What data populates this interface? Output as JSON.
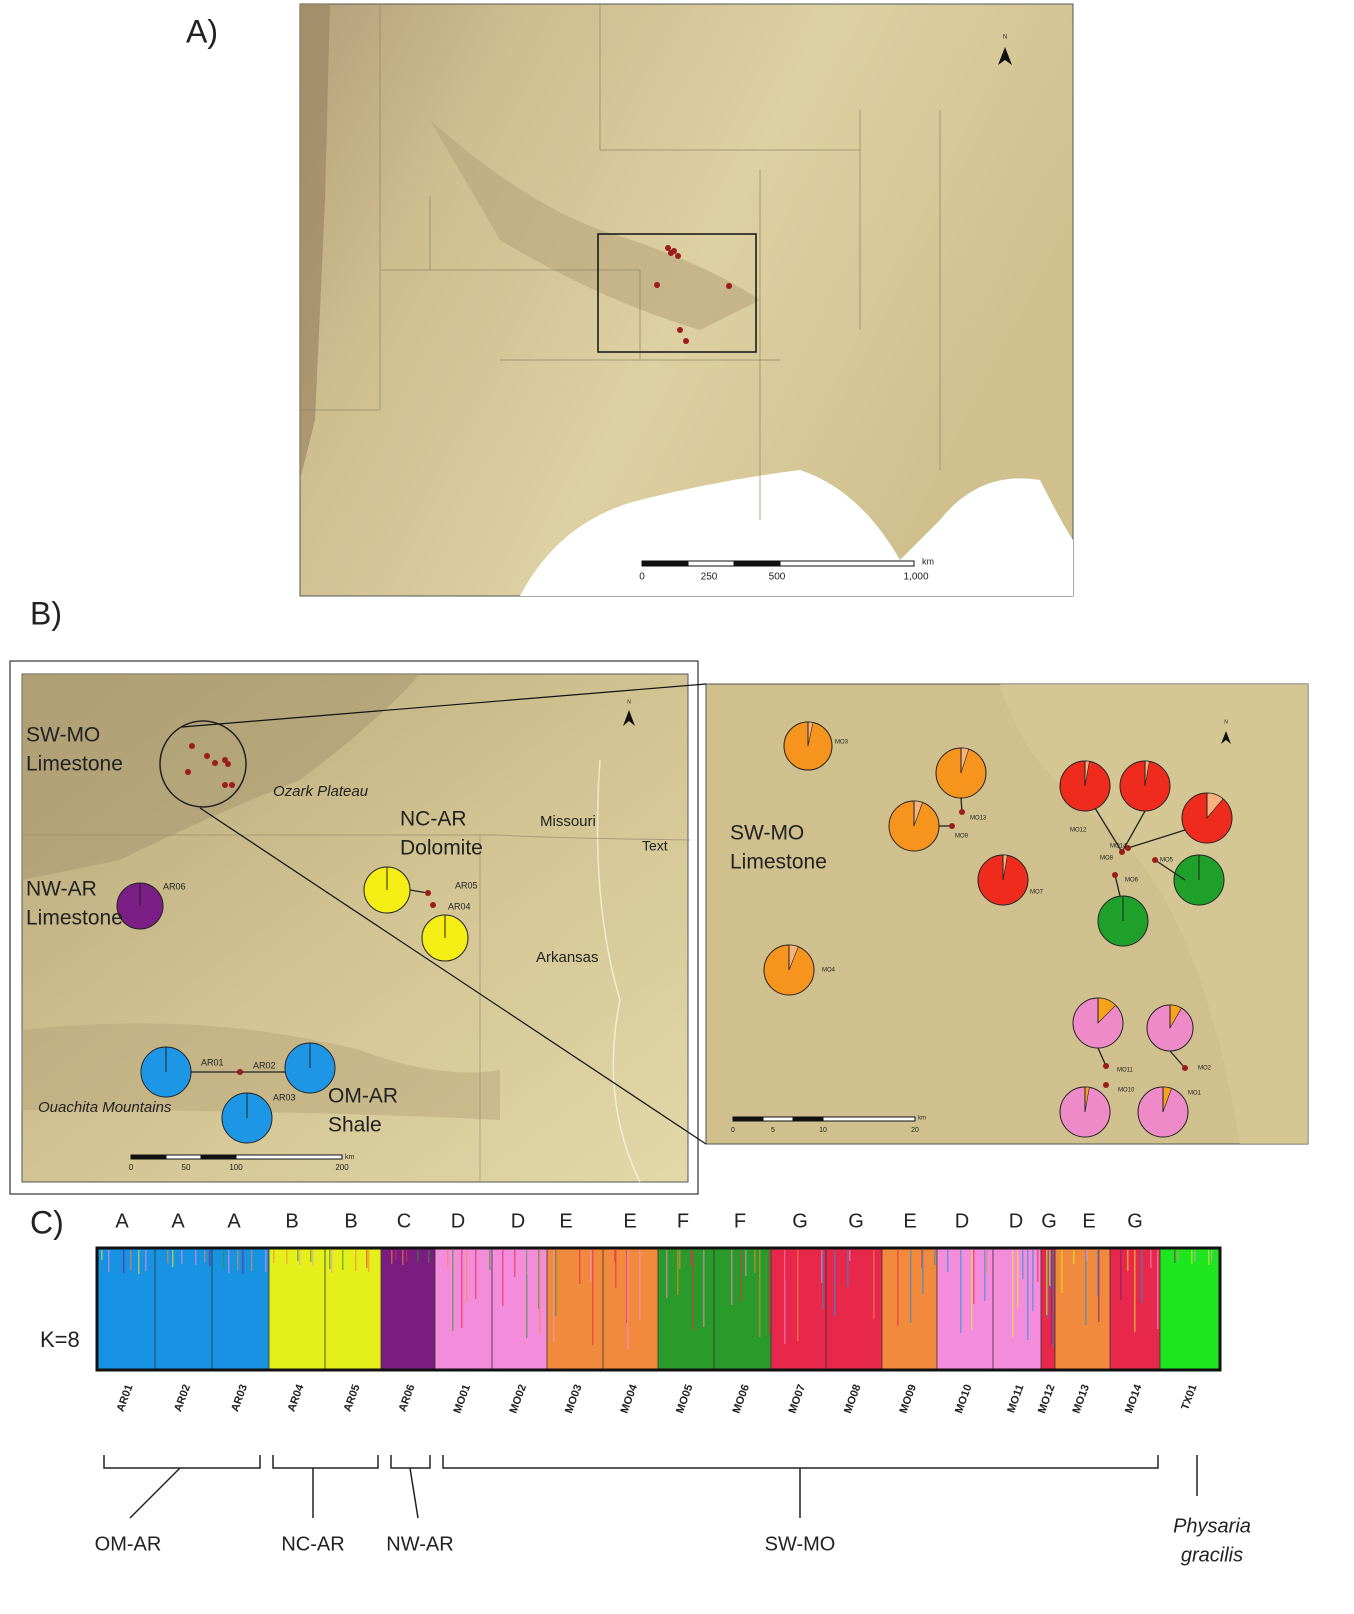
{
  "panel_a": {
    "label": "A)",
    "scale": {
      "ticks": [
        "0",
        "250",
        "500",
        "1,000"
      ],
      "unit": "km"
    },
    "north": "N"
  },
  "panel_b": {
    "label": "B)",
    "left_map": {
      "places": [
        [
          "SW-MO",
          "Limestone"
        ],
        [
          "NC-AR",
          "Dolomite"
        ],
        [
          "NW-AR",
          "Limestone"
        ],
        [
          "OM-AR",
          "Shale"
        ]
      ],
      "features": [
        "Ozark Plateau",
        "Missouri",
        "Arkansas",
        "Ouachita Mountains"
      ],
      "note": "Text",
      "sites": [
        "AR06",
        "AR05",
        "AR04",
        "AR01",
        "AR02",
        "AR03"
      ],
      "scale": {
        "ticks": [
          "0",
          "50",
          "100",
          "200"
        ],
        "unit": "km"
      },
      "north": "N"
    },
    "right_map": {
      "place": [
        "SW-MO",
        "Limestone"
      ],
      "sites": [
        "MO3",
        "MO13",
        "MO9",
        "MO7",
        "MO12",
        "MO14",
        "MO8",
        "MO5",
        "MO6",
        "MO4",
        "MO11",
        "MO2",
        "MO10",
        "MO1"
      ],
      "scale": {
        "ticks": [
          "0",
          "5",
          "10",
          "20"
        ],
        "unit": "km"
      },
      "north": "N"
    }
  },
  "panel_c": {
    "label": "C)",
    "k_label": "K=8",
    "cluster_labels": [
      "A",
      "A",
      "A",
      "B",
      "B",
      "C",
      "D",
      "D",
      "E",
      "E",
      "F",
      "F",
      "G",
      "G",
      "E",
      "D",
      "D",
      "G",
      "E",
      "G"
    ],
    "populations": [
      "AR01",
      "AR02",
      "AR03",
      "AR04",
      "AR05",
      "AR06",
      "MO01",
      "MO02",
      "MO03",
      "MO04",
      "MO05",
      "MO06",
      "MO07",
      "MO08",
      "MO09",
      "MO10",
      "MO11",
      "MO12",
      "MO13",
      "MO14",
      "TX01"
    ],
    "groups": [
      "OM-AR",
      "NC-AR",
      "NW-AR",
      "SW-MO"
    ],
    "species": [
      "Physaria",
      "gracilis"
    ]
  }
}
